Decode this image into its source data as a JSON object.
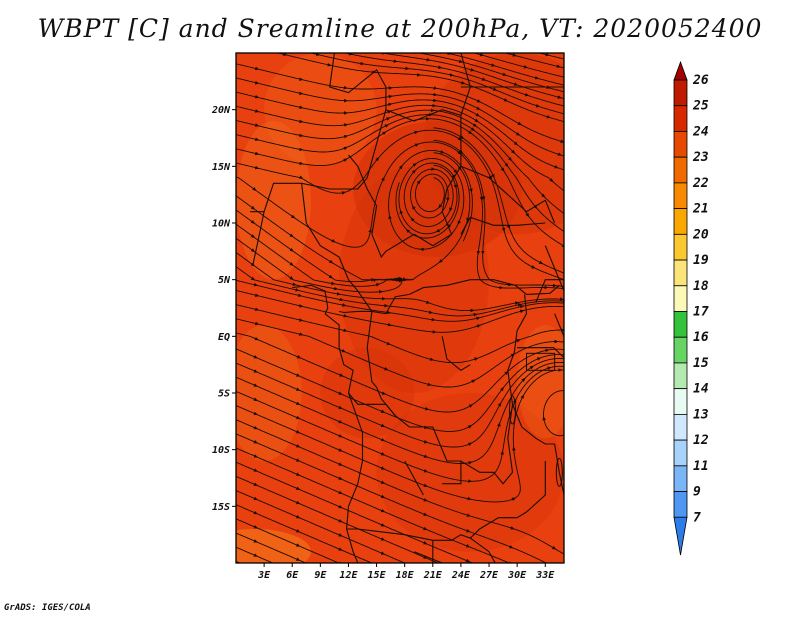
{
  "title": "WBPT [C] and Sreamline at 200hPa, VT: 2020052400",
  "credit": "GrADS: IGES/COLA",
  "map": {
    "lat_range": [
      -20,
      25
    ],
    "lon_range": [
      0,
      35
    ],
    "lat_ticks": [
      {
        "value": 20,
        "label": "20N"
      },
      {
        "value": 15,
        "label": "15N"
      },
      {
        "value": 10,
        "label": "10N"
      },
      {
        "value": 5,
        "label": "5N"
      },
      {
        "value": 0,
        "label": "EQ"
      },
      {
        "value": -5,
        "label": "5S"
      },
      {
        "value": -10,
        "label": "10S"
      },
      {
        "value": -15,
        "label": "15S"
      }
    ],
    "lon_ticks": [
      {
        "value": 3,
        "label": "3E"
      },
      {
        "value": 6,
        "label": "6E"
      },
      {
        "value": 9,
        "label": "9E"
      },
      {
        "value": 12,
        "label": "12E"
      },
      {
        "value": 15,
        "label": "15E"
      },
      {
        "value": 18,
        "label": "18E"
      },
      {
        "value": 21,
        "label": "21E"
      },
      {
        "value": 24,
        "label": "24E"
      },
      {
        "value": 27,
        "label": "27E"
      },
      {
        "value": 30,
        "label": "30E"
      },
      {
        "value": 33,
        "label": "33E"
      }
    ],
    "base_color": "#e8400e",
    "field_colors": {
      "darker": "#d23009",
      "lighter": "#f0641a",
      "orange": "#f47018"
    },
    "streamline_color": "#1a0d05",
    "features": [
      "anticyclone near 21E 13N",
      "anticyclone near 35E 6S"
    ]
  },
  "colorbar": {
    "levels": [
      "26",
      "25",
      "24",
      "23",
      "22",
      "21",
      "20",
      "19",
      "18",
      "17",
      "16",
      "15",
      "14",
      "13",
      "12",
      "11",
      "9",
      "7"
    ],
    "colors": [
      "#a50000",
      "#c01b00",
      "#d82800",
      "#e64a00",
      "#f06a00",
      "#f78a00",
      "#f9a800",
      "#fbc830",
      "#fbe57a",
      "#fcf8b5",
      "#34c23a",
      "#67d564",
      "#b4eab0",
      "#e8fbf2",
      "#cfe8ff",
      "#a6d2fb",
      "#7ab5f7",
      "#4e97f2",
      "#2d7de8"
    ]
  }
}
